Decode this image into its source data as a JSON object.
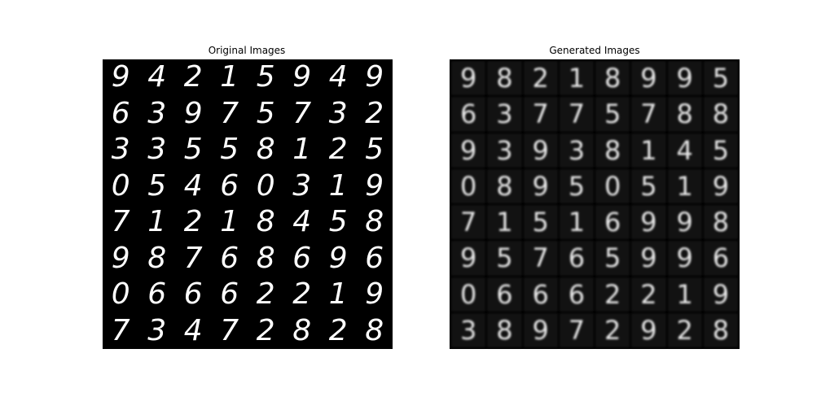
{
  "panels": {
    "original": {
      "title": "Original Images",
      "digits": [
        [
          "9",
          "4",
          "2",
          "1",
          "5",
          "9",
          "4",
          "9"
        ],
        [
          "6",
          "3",
          "9",
          "7",
          "5",
          "7",
          "3",
          "2"
        ],
        [
          "3",
          "3",
          "5",
          "5",
          "8",
          "1",
          "2",
          "5"
        ],
        [
          "0",
          "5",
          "4",
          "6",
          "0",
          "3",
          "1",
          "9"
        ],
        [
          "7",
          "1",
          "2",
          "1",
          "8",
          "4",
          "5",
          "8"
        ],
        [
          "9",
          "8",
          "7",
          "6",
          "8",
          "6",
          "9",
          "6"
        ],
        [
          "0",
          "6",
          "6",
          "6",
          "2",
          "2",
          "1",
          "9"
        ],
        [
          "7",
          "3",
          "4",
          "7",
          "2",
          "8",
          "2",
          "8"
        ]
      ]
    },
    "generated": {
      "title": "Generated Images",
      "digits": [
        [
          "9",
          "8",
          "2",
          "1",
          "8",
          "9",
          "9",
          "5"
        ],
        [
          "6",
          "3",
          "7",
          "7",
          "5",
          "7",
          "8",
          "8"
        ],
        [
          "9",
          "3",
          "9",
          "3",
          "8",
          "1",
          "4",
          "5"
        ],
        [
          "0",
          "8",
          "9",
          "5",
          "0",
          "5",
          "1",
          "9"
        ],
        [
          "7",
          "1",
          "5",
          "1",
          "6",
          "9",
          "9",
          "8"
        ],
        [
          "9",
          "5",
          "7",
          "6",
          "5",
          "9",
          "9",
          "6"
        ],
        [
          "0",
          "6",
          "6",
          "6",
          "2",
          "2",
          "1",
          "9"
        ],
        [
          "3",
          "8",
          "9",
          "7",
          "2",
          "9",
          "2",
          "8"
        ]
      ]
    }
  }
}
